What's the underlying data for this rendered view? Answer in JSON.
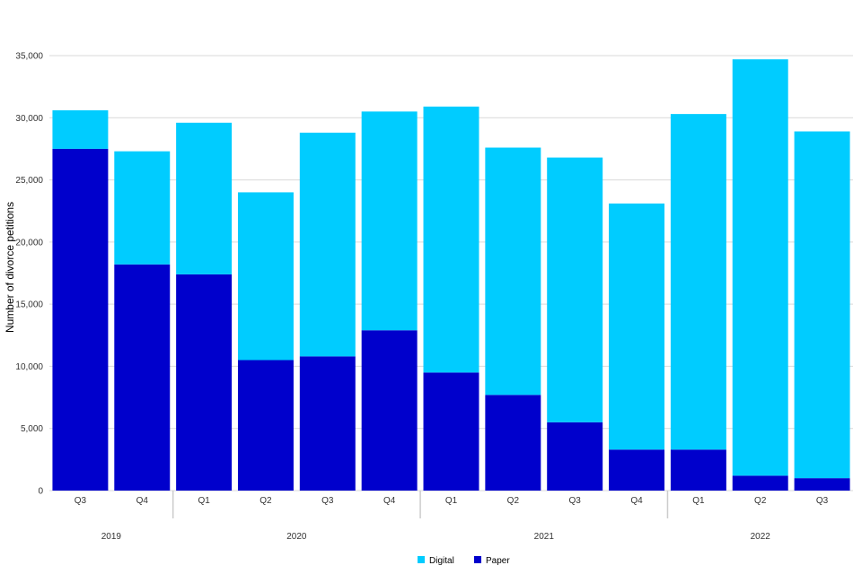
{
  "chart_data": {
    "type": "bar",
    "stacked": true,
    "title": "",
    "xlabel": "",
    "ylabel": "Number of divorce petitions",
    "ylim": [
      0,
      35000
    ],
    "yticks": [
      0,
      5000,
      10000,
      15000,
      20000,
      25000,
      30000,
      35000
    ],
    "ytick_labels": [
      "0",
      "5,000",
      "10,000",
      "15,000",
      "20,000",
      "25,000",
      "30,000",
      "35,000"
    ],
    "grid": true,
    "legend_position": "bottom-center",
    "categories": [
      "Q3",
      "Q4",
      "Q1",
      "Q2",
      "Q3",
      "Q4",
      "Q1",
      "Q2",
      "Q3",
      "Q4",
      "Q1",
      "Q2",
      "Q3"
    ],
    "groups": [
      {
        "label": "2019",
        "count": 2
      },
      {
        "label": "2020",
        "count": 4
      },
      {
        "label": "2021",
        "count": 4
      },
      {
        "label": "2022",
        "count": 3
      }
    ],
    "series": [
      {
        "name": "Paper",
        "color": "#0000cc",
        "values": [
          27500,
          18200,
          17400,
          10500,
          10800,
          12900,
          9500,
          7700,
          5500,
          3300,
          3300,
          1200,
          1000
        ]
      },
      {
        "name": "Digital",
        "color": "#00ccff",
        "values": [
          3100,
          9100,
          12200,
          13500,
          18000,
          17600,
          21400,
          19900,
          21300,
          19800,
          27000,
          33500,
          27900
        ]
      }
    ],
    "legend": [
      {
        "name": "Digital",
        "color": "#00ccff"
      },
      {
        "name": "Paper",
        "color": "#0000cc"
      }
    ]
  }
}
